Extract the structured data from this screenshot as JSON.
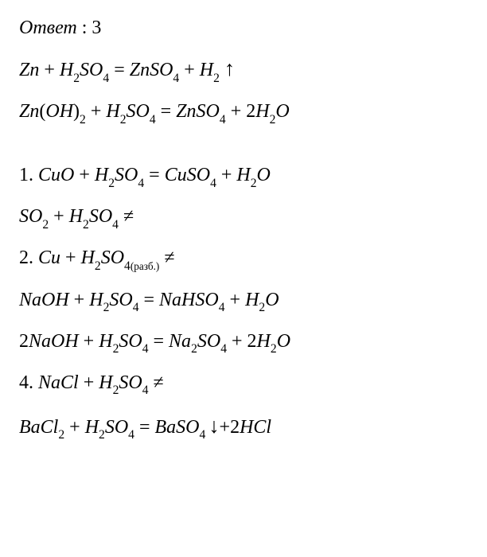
{
  "font_family": "Times New Roman",
  "font_size_pt": 24,
  "text_color": "#000000",
  "background_color": "#ffffff",
  "header": {
    "label_italic": "Ответ",
    "colon": " : ",
    "value": "3"
  },
  "eq1": {
    "t1": "Zn",
    "plus1": " + ",
    "t2": "H",
    "s2": "2",
    "t3": "SO",
    "s3": "4",
    "eq": " = ",
    "t4": "ZnSO",
    "s4": "4",
    "plus2": " + ",
    "t5": "H",
    "s5": "2",
    "arrow": "↑"
  },
  "eq2": {
    "t1": "Zn",
    "lp": "(",
    "t2": "OH",
    "rp": ")",
    "s1": "2",
    "plus1": " + ",
    "t3": "H",
    "s2": "2",
    "t4": "SO",
    "s3": "4",
    "eq": " = ",
    "t5": "ZnSO",
    "s4": "4",
    "plus2": " + ",
    "coef": "2",
    "t6": "H",
    "s5": "2",
    "t7": "O"
  },
  "eq3": {
    "num": "1. ",
    "t1": "CuO",
    "plus1": " + ",
    "t2": "H",
    "s1": "2",
    "t3": "SO",
    "s2": "4",
    "eq": " = ",
    "t4": "CuSO",
    "s3": "4",
    "plus2": " + ",
    "t5": "H",
    "s4": "2",
    "t6": "O"
  },
  "eq4": {
    "t1": "SO",
    "s1": "2",
    "plus1": " + ",
    "t2": "H",
    "s2": "2",
    "t3": "SO",
    "s3": "4",
    "ne": " ≠"
  },
  "eq5": {
    "num": "2. ",
    "t1": "Cu",
    "plus1": " + ",
    "t2": "H",
    "s1": "2",
    "t3": "SO",
    "s2": "4",
    "cond_l": "(",
    "cond": "разб.",
    "cond_r": ")",
    "ne": " ≠"
  },
  "eq6": {
    "t1": "NaOH",
    "plus1": " + ",
    "t2": "H",
    "s1": "2",
    "t3": "SO",
    "s2": "4",
    "eq": " = ",
    "t4": "NaHSO",
    "s3": "4",
    "plus2": " + ",
    "t5": "H",
    "s4": "2",
    "t6": "O"
  },
  "eq7": {
    "coef1": "2",
    "t1": "NaOH",
    "plus1": " + ",
    "t2": "H",
    "s1": "2",
    "t3": "SO",
    "s2": "4",
    "eq": " = ",
    "t4": "Na",
    "s3": "2",
    "t5": "SO",
    "s4": "4",
    "plus2": " + ",
    "coef2": "2",
    "t6": "H",
    "s5": "2",
    "t7": "O"
  },
  "eq8": {
    "num": "4. ",
    "t1": "NaCl",
    "plus1": " + ",
    "t2": "H",
    "s1": "2",
    "t3": "SO",
    "s2": "4",
    "ne": " ≠"
  },
  "eq9": {
    "t1": "BaCl",
    "s1": "2",
    "plus1": " + ",
    "t2": "H",
    "s2": "2",
    "t3": "SO",
    "s3": "4",
    "eq": " = ",
    "t4": "BaSO",
    "s4": "4",
    "arrow": "↓",
    "plus2": "+",
    "coef": "2",
    "t5": "HCl"
  }
}
